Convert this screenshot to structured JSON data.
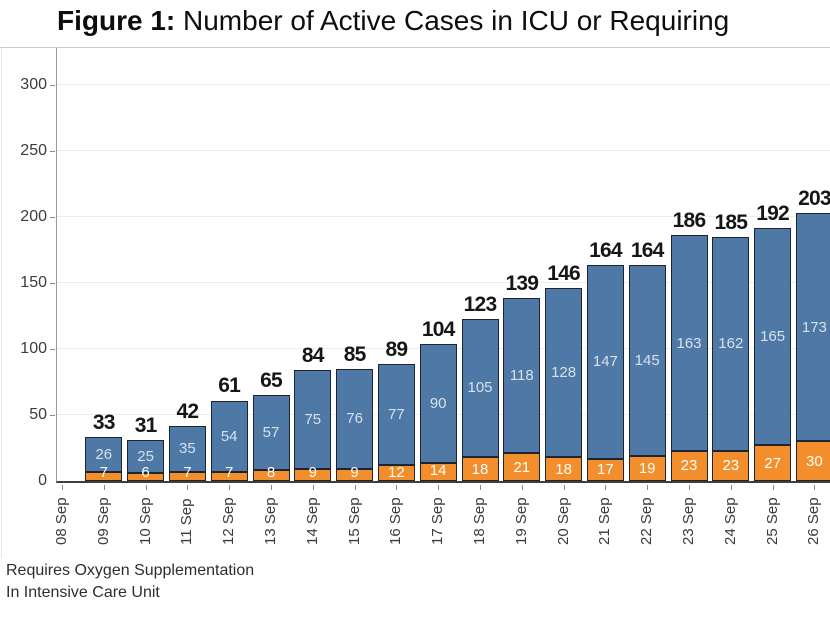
{
  "title": {
    "prefix": "Figure 1:",
    "rest": " Number of Active Cases in ICU or Requiring"
  },
  "legend": {
    "line1": "Requires Oxygen Supplementation",
    "line2": "In Intensive Care Unit"
  },
  "colors": {
    "oxygen_fill": "#4e79a7",
    "icu_fill": "#f28e2b",
    "bar_border": "#1f2430",
    "oxygen_label_text": "#d8e0ea",
    "icu_label_text": "#fefefe",
    "grid": "#ececec",
    "axis_line": "#3f3f3f"
  },
  "chart_data": {
    "type": "bar",
    "stacked": true,
    "title": "Figure 1: Number of Active Cases in ICU or Requiring (title clipped at right edge)",
    "xlabel": "",
    "ylabel": "",
    "ylim": [
      0,
      328
    ],
    "y_ticks": [
      0,
      50,
      100,
      150,
      200,
      250,
      300
    ],
    "grid": "horizontal, light gray",
    "legend_position": "bottom-left, text only",
    "categories": [
      "08 Sep",
      "09 Sep",
      "10 Sep",
      "11 Sep",
      "12 Sep",
      "13 Sep",
      "14 Sep",
      "15 Sep",
      "16 Sep",
      "17 Sep",
      "18 Sep",
      "19 Sep",
      "20 Sep",
      "21 Sep",
      "22 Sep",
      "23 Sep",
      "24 Sep",
      "25 Sep",
      "26 Sep"
    ],
    "series": [
      {
        "name": "Requires Oxygen Supplementation",
        "color": "#4e79a7",
        "values": [
          null,
          26,
          25,
          35,
          54,
          57,
          75,
          76,
          77,
          90,
          105,
          118,
          128,
          147,
          145,
          163,
          162,
          165,
          173
        ]
      },
      {
        "name": "In Intensive Care Unit",
        "color": "#f28e2b",
        "values": [
          null,
          7,
          6,
          7,
          7,
          8,
          9,
          9,
          12,
          14,
          18,
          21,
          18,
          17,
          19,
          23,
          23,
          27,
          30
        ]
      }
    ],
    "totals": [
      null,
      33,
      31,
      42,
      61,
      65,
      84,
      85,
      89,
      104,
      123,
      139,
      146,
      164,
      164,
      186,
      185,
      192,
      203
    ],
    "note": "26 Sep bar is clipped by the right image edge; its visible labels read 20…, 17…, 30"
  }
}
